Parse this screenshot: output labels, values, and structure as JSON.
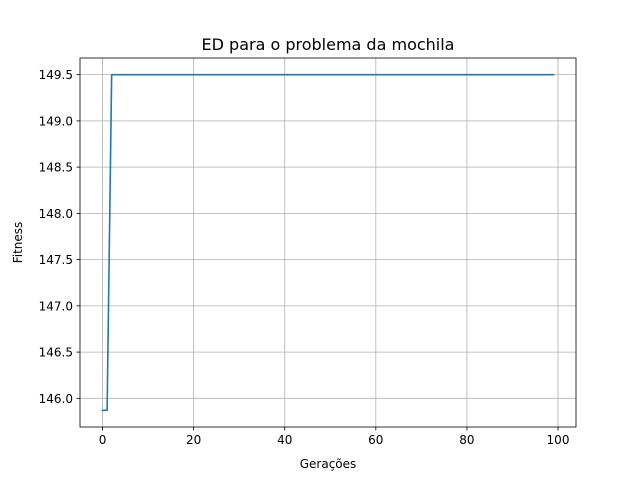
{
  "chart_data": {
    "type": "line",
    "title": "ED para o problema da mochila",
    "xlabel": "Gerações",
    "ylabel": "Fitness",
    "xlim": [
      -4.95,
      103.95
    ],
    "ylim": [
      145.69,
      149.68
    ],
    "grid": true,
    "xticks": [
      0,
      20,
      40,
      60,
      80,
      100
    ],
    "xtick_labels": [
      "0",
      "20",
      "40",
      "60",
      "80",
      "100"
    ],
    "yticks": [
      146.0,
      146.5,
      147.0,
      147.5,
      148.0,
      148.5,
      149.0,
      149.5
    ],
    "ytick_labels": [
      "146.0",
      "146.5",
      "147.0",
      "147.5",
      "148.0",
      "148.5",
      "149.0",
      "149.5"
    ],
    "series": [
      {
        "color": "#1f77b4",
        "x": [
          0,
          1,
          2,
          99
        ],
        "y": [
          145.87,
          145.87,
          149.5,
          149.5
        ]
      }
    ]
  }
}
